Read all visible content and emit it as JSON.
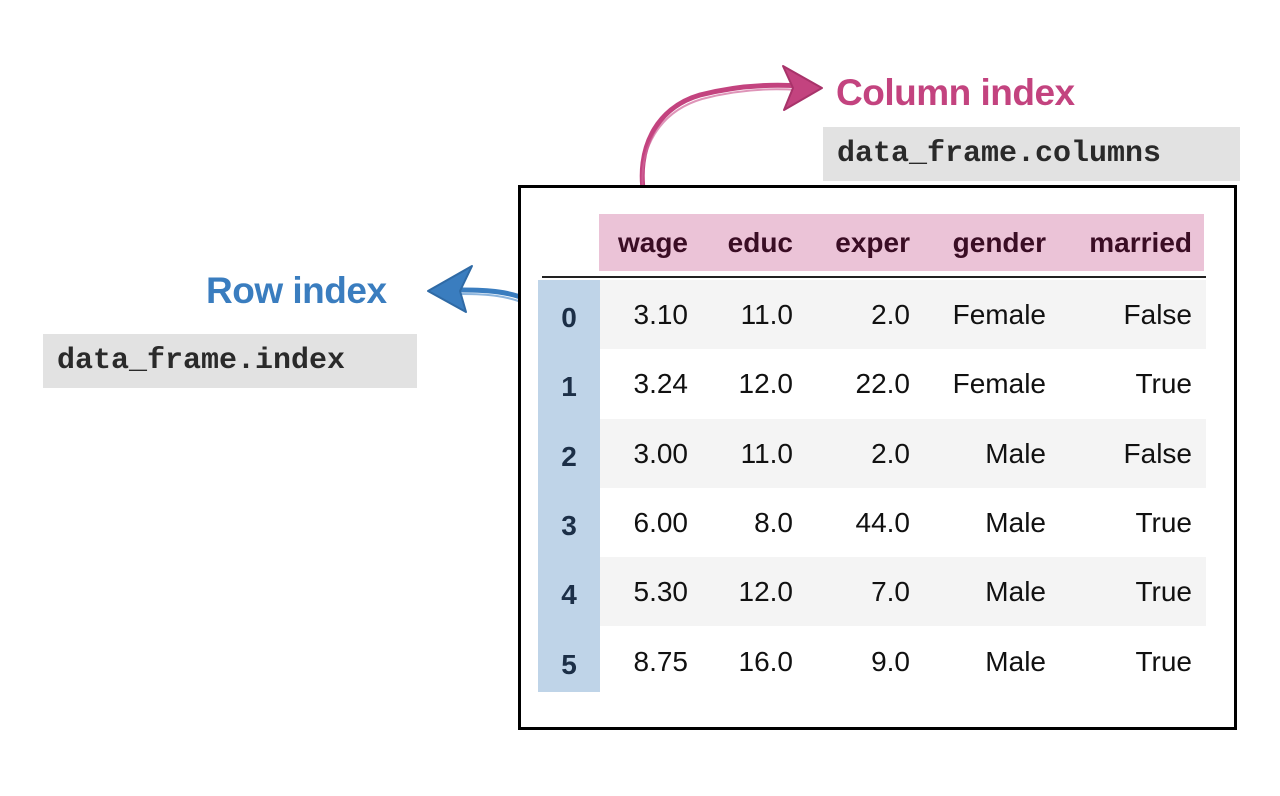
{
  "column_index": {
    "title": "Column index",
    "code": "data_frame.columns"
  },
  "row_index": {
    "title": "Row index",
    "code": "data_frame.index"
  },
  "table": {
    "columns": [
      "wage",
      "educ",
      "exper",
      "gender",
      "married"
    ],
    "index": [
      "0",
      "1",
      "2",
      "3",
      "4",
      "5"
    ],
    "rows": [
      [
        "3.10",
        "11.0",
        "2.0",
        "Female",
        "False"
      ],
      [
        "3.24",
        "12.0",
        "22.0",
        "Female",
        "True"
      ],
      [
        "3.00",
        "11.0",
        "2.0",
        "Male",
        "False"
      ],
      [
        "6.00",
        "8.0",
        "44.0",
        "Male",
        "True"
      ],
      [
        "5.30",
        "12.0",
        "7.0",
        "Male",
        "True"
      ],
      [
        "8.75",
        "16.0",
        "9.0",
        "Male",
        "True"
      ]
    ]
  },
  "colors": {
    "column_accent": "#c3437f",
    "row_accent": "#3a7dbf",
    "header_bg": "#ebc3d7",
    "index_bg": "#bfd4e8"
  },
  "icons": [
    "column-index-arrow-icon",
    "row-index-arrow-icon"
  ]
}
